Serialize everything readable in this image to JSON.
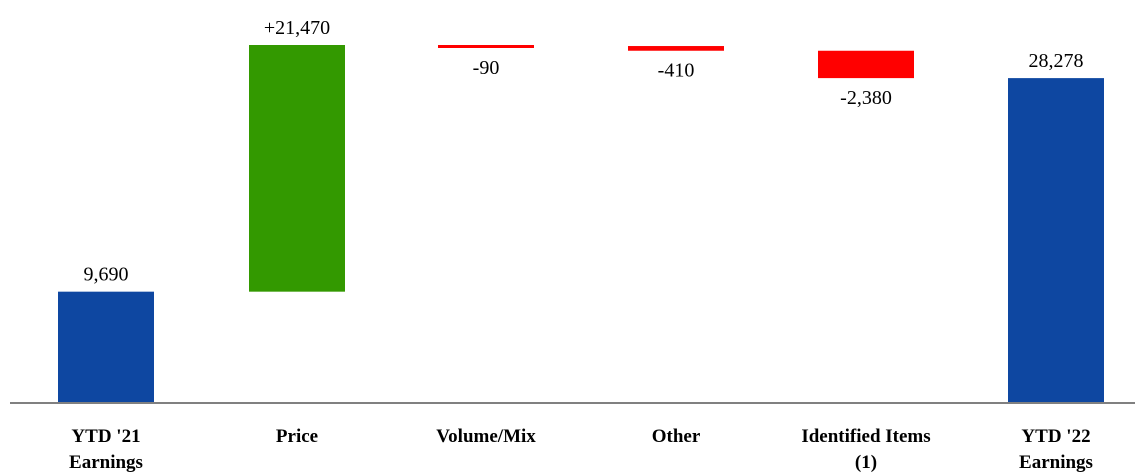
{
  "chart_data": {
    "type": "waterfall",
    "title": "",
    "xlabel": "",
    "ylabel": "",
    "categories": [
      [
        "YTD '21",
        "Earnings"
      ],
      [
        "Price"
      ],
      [
        "Volume/Mix"
      ],
      [
        "Other"
      ],
      [
        "Identified Items",
        "(1)"
      ],
      [
        "YTD '22",
        "Earnings"
      ]
    ],
    "bars": [
      {
        "kind": "total",
        "start": 0,
        "end": 9690,
        "label": "9,690",
        "color": "#0E47A1"
      },
      {
        "kind": "delta",
        "start": 9690,
        "end": 31160,
        "label": "+21,470",
        "color": "#339900"
      },
      {
        "kind": "delta",
        "start": 31160,
        "end": 31070,
        "label": "-90",
        "color": "#FF0000"
      },
      {
        "kind": "delta",
        "start": 31070,
        "end": 30660,
        "label": "-410",
        "color": "#FF0000"
      },
      {
        "kind": "delta",
        "start": 30660,
        "end": 28278,
        "label": "-2,380",
        "color": "#FF0000"
      },
      {
        "kind": "total",
        "start": 0,
        "end": 28278,
        "label": "28,278",
        "color": "#0E47A1"
      }
    ],
    "ylim": [
      0,
      31160
    ],
    "grid": false,
    "legend": "none"
  }
}
